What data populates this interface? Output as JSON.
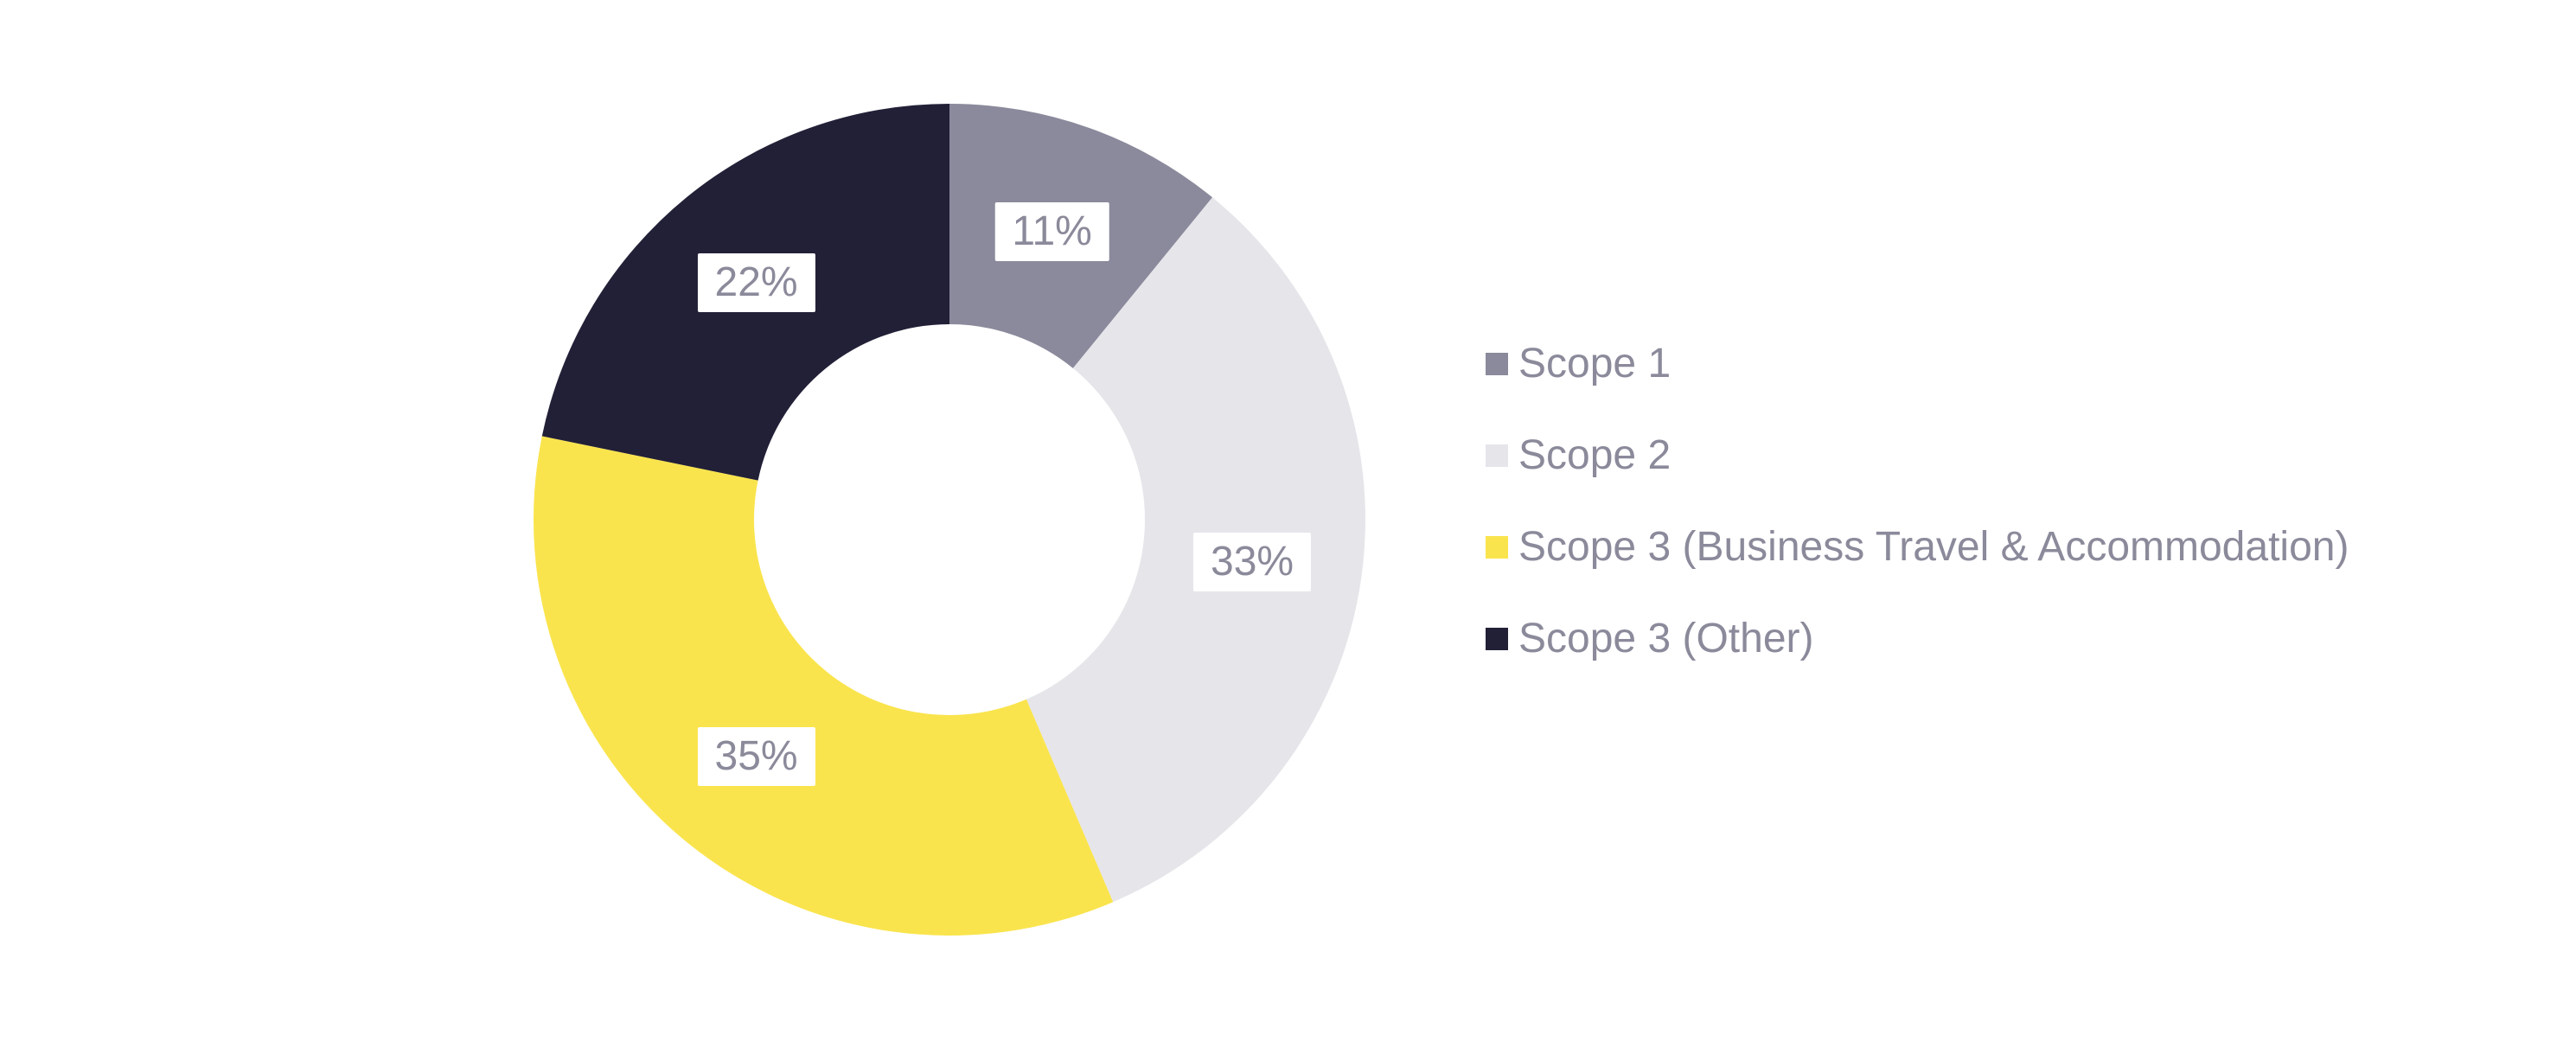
{
  "page": {
    "background": "#ffffff"
  },
  "chart_data": {
    "type": "pie",
    "subtype": "donut",
    "direction": "clockwise",
    "start_angle_deg": 0,
    "legend_position": "right",
    "grid": false,
    "inner_radius_ratio": 0.47,
    "segments": [
      {
        "label": "Scope 1",
        "value": 11,
        "display": "11%",
        "color": "#8b8a9c"
      },
      {
        "label": "Scope 2",
        "value": 33,
        "display": "33%",
        "color": "#e6e5ea"
      },
      {
        "label": "Scope 3 (Business Travel & Accommodation)",
        "value": 35,
        "display": "35%",
        "color": "#fae44d"
      },
      {
        "label": "Scope 3 (Other)",
        "value": 22,
        "display": "22%",
        "color": "#222037"
      }
    ],
    "label_style": {
      "text_color": "#8a8a9b",
      "background": "#ffffff"
    },
    "legend_text_color": "#8a8a9b"
  }
}
